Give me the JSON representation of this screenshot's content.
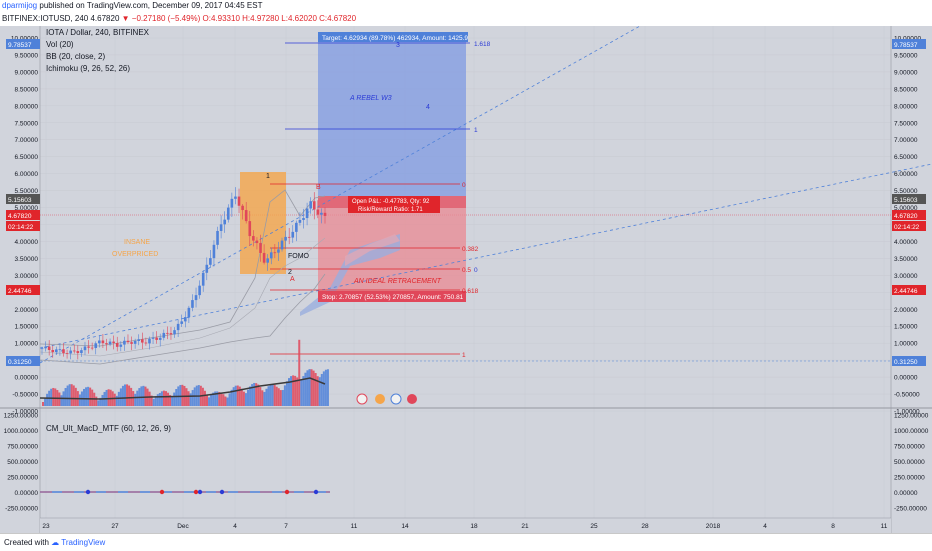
{
  "header": {
    "author": "dparmijog",
    "published_text": "published on TradingView.com, December 09, 2017 04:45 EST",
    "symbol": "BITFINEX:IOTUSD, 240",
    "last": "4.67820",
    "change": "−0.27180 (−5.49%)",
    "open": "O:4.93310",
    "high": "H:4.97280",
    "low": "L:4.62020",
    "close": "C:4.67820"
  },
  "legend": {
    "title": "IOTA / Dollar, 240, BITFINEX",
    "vol": "Vol (20)",
    "bb": "BB (20, close, 2)",
    "ichimoku": "Ichimoku (9, 26, 52, 26)",
    "macd": "CM_Ult_MacD_MTF (60, 12, 26, 9)"
  },
  "annotations": {
    "target_label": "Target: 4.62934 (89.78%) 462934, Amount: 1425.9",
    "stop_label": "Stop: 2.70857 (52.53%) 270857, Amount: 750.81",
    "pnl_line1": "Open P&L: -0.47783, Qty: 92",
    "pnl_line2": "Risk/Reward Ratio: 1.71",
    "rebel": "A REBEL W3",
    "retracement": "AN IDEAL RETRACEMENT",
    "insane_1": "INSANE",
    "insane_2": "OVERPRICED",
    "fomo": "FOMO",
    "wave_1": "1",
    "wave_2": "2",
    "wave_3": "3",
    "wave_4": "4",
    "wave_a": "A",
    "wave_b": "B",
    "fib_1618_top": "1.618",
    "fib_1_top": "1",
    "fib_0": "0",
    "fib_0382": "0.382",
    "fib_05": "0.5",
    "fib_0_right": "0",
    "fib_0618": "0.618",
    "fib_1_bottom": "1"
  },
  "price_badges": {
    "left_top": "10.00000",
    "left_target": "9.78537",
    "left_515": "5.15603",
    "left_cur": "4.67820",
    "left_time": "02:14:22",
    "left_244": "2.44746",
    "left_031": "0.31250",
    "right_target": "9.78537",
    "right_515": "5.15603",
    "right_cur": "4.67820",
    "right_time": "02:14:22",
    "right_244": "2.44746",
    "right_031": "0.31250"
  },
  "footer": {
    "created": "Created with",
    "brand": "TradingView"
  },
  "colors": {
    "background": "#d1d4dc",
    "up": "#4f81d9",
    "down": "#e0475a",
    "target_box": "#6a8ee0",
    "stop_box": "#e8737f",
    "orange": "#f5a54a"
  },
  "chart_data": [
    {
      "type": "candlestick",
      "title": "IOTA / Dollar, 240, BITFINEX",
      "yticks": [
        "10.00000",
        "9.50000",
        "9.00000",
        "8.50000",
        "8.00000",
        "7.50000",
        "7.00000",
        "6.50000",
        "6.00000",
        "5.50000",
        "5.00000",
        "4.50000",
        "4.00000",
        "3.50000",
        "3.00000",
        "2.50000",
        "2.00000",
        "1.50000",
        "1.00000",
        "0.50000",
        "0.00000",
        "-0.50000",
        "-1.00000"
      ],
      "xticks": [
        "23",
        "27",
        "Dec",
        "4",
        "7",
        "11",
        "14",
        "18",
        "21",
        "25",
        "28",
        "2018",
        "4",
        "8",
        "11"
      ],
      "ylim": [
        -1.0,
        10.0
      ],
      "close_path": [
        [
          "Nov 22",
          0.85
        ],
        [
          "Nov 24",
          0.78
        ],
        [
          "Nov 26",
          0.72
        ],
        [
          "Nov 27",
          0.85
        ],
        [
          "Nov 28",
          1.05
        ],
        [
          "Nov 29",
          0.95
        ],
        [
          "Nov 30",
          1.05
        ],
        [
          "Dec 1",
          1.05
        ],
        [
          "Dec 2",
          1.2
        ],
        [
          "Dec 3",
          1.4
        ],
        [
          "Dec 4",
          2.1
        ],
        [
          "Dec 5",
          3.2
        ],
        [
          "Dec 5.5",
          4.5
        ],
        [
          "Dec 6",
          5.4
        ],
        [
          "Dec 6.5",
          4.2
        ],
        [
          "Dec 7",
          3.4
        ],
        [
          "Dec 7.5",
          3.9
        ],
        [
          "Dec 8",
          4.4
        ],
        [
          "Dec 8.5",
          5.1
        ],
        [
          "Dec 9",
          4.68
        ]
      ],
      "current_price": 4.6782,
      "target_price": 9.78537,
      "stop_price": 2.44746,
      "entry_price": 5.15603
    },
    {
      "type": "line",
      "title": "CM_Ult_MacD_MTF (60, 12, 26, 9)",
      "yticks": [
        "1250.00000",
        "1000.00000",
        "750.00000",
        "500.00000",
        "250.00000",
        "0.00000",
        "-250.00000"
      ],
      "ylim": [
        -350,
        1300
      ],
      "values_approx": 0
    }
  ]
}
